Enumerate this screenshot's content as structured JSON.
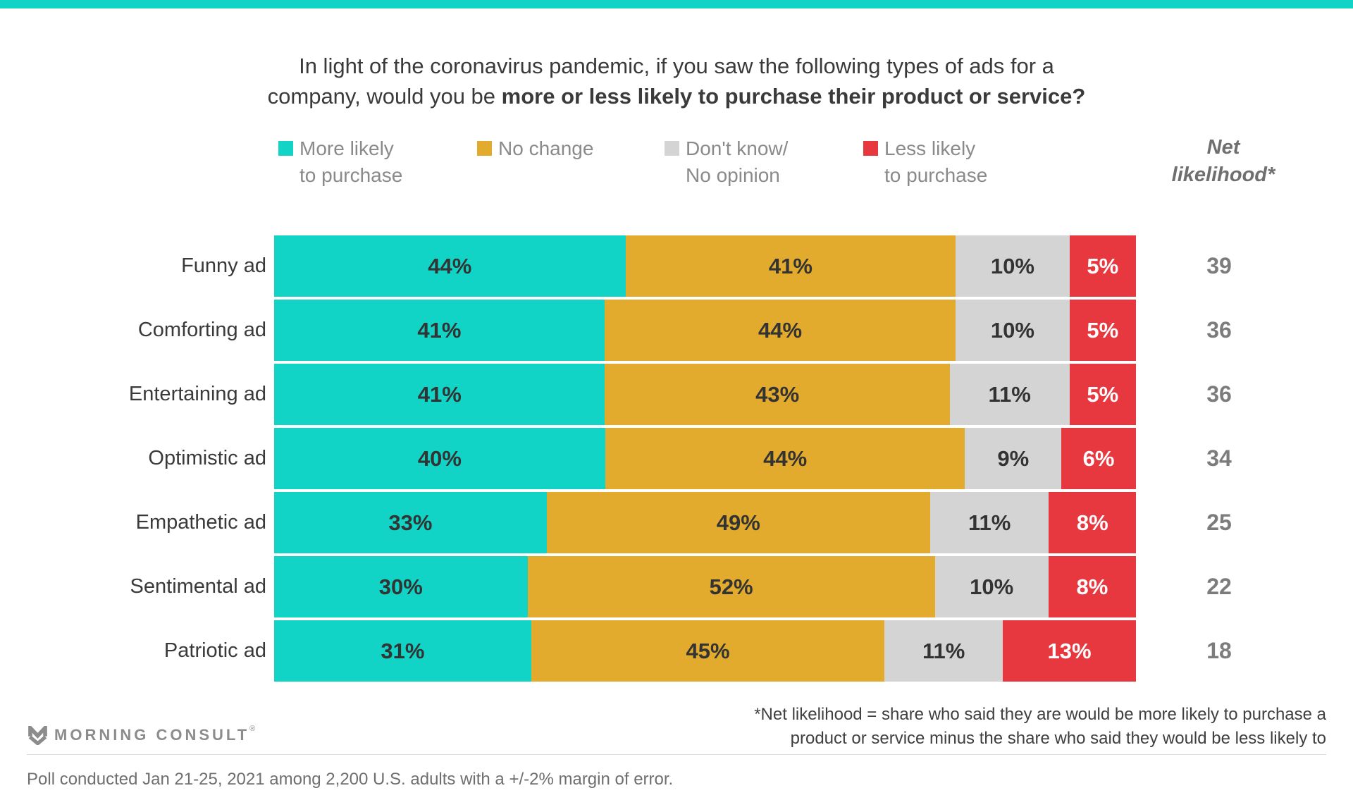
{
  "colors": {
    "accent_teal": "#11d3c6",
    "gold": "#e2ab2d",
    "gray": "#d4d4d4",
    "red": "#e73840",
    "dark_text": "#333333",
    "white_text": "#ffffff"
  },
  "title": {
    "line1": "In light of the coronavirus pandemic, if you saw the following types of ads for a",
    "line2_regular": "company, would you be ",
    "line2_bold": "more or less likely to purchase their product or service?"
  },
  "legend": {
    "items": [
      {
        "label_line1": "More likely",
        "label_line2": "to purchase",
        "color": "#11d3c6"
      },
      {
        "label_line1": "No change",
        "label_line2": "",
        "color": "#e2ab2d"
      },
      {
        "label_line1": "Don't know/",
        "label_line2": "No opinion",
        "color": "#d4d4d4"
      },
      {
        "label_line1": "Less likely",
        "label_line2": "to purchase",
        "color": "#e73840"
      }
    ],
    "net_header_line1": "Net",
    "net_header_line2": "likelihood*"
  },
  "chart_data": {
    "type": "bar",
    "orientation": "horizontal-stacked",
    "title": "In light of the coronavirus pandemic, if you saw the following types of ads for a company, would you be more or less likely to purchase their product or service?",
    "value_suffix": "%",
    "categories": [
      "Funny ad",
      "Comforting ad",
      "Entertaining ad",
      "Optimistic ad",
      "Empathetic ad",
      "Sentimental ad",
      "Patriotic ad"
    ],
    "series": [
      {
        "name": "More likely to purchase",
        "color": "#11d3c6",
        "label_color": "#333333",
        "values": [
          44,
          41,
          41,
          40,
          33,
          30,
          31
        ]
      },
      {
        "name": "No change",
        "color": "#e2ab2d",
        "label_color": "#333333",
        "values": [
          41,
          44,
          43,
          44,
          49,
          52,
          45
        ]
      },
      {
        "name": "Don't know/No opinion",
        "color": "#d4d4d4",
        "label_color": "#333333",
        "values": [
          10,
          10,
          11,
          9,
          11,
          10,
          11
        ]
      },
      {
        "name": "Less likely to purchase",
        "color": "#e73840",
        "label_color": "#ffffff",
        "values": [
          5,
          5,
          5,
          6,
          8,
          8,
          13
        ]
      }
    ],
    "net_column": {
      "header": "Net likelihood*",
      "values": [
        39,
        36,
        36,
        34,
        25,
        22,
        18
      ]
    },
    "legend_position": "top",
    "grid": false
  },
  "footer": {
    "logo_text": "MORNING CONSULT",
    "registered_mark": "®",
    "footnote_line1": "*Net likelihood = share who said they are would be more likely to purchase a",
    "footnote_line2": "product or service minus the share who said they would be less likely to",
    "poll_note": "Poll conducted Jan 21-25, 2021 among 2,200 U.S. adults with a +/-2% margin of error."
  }
}
